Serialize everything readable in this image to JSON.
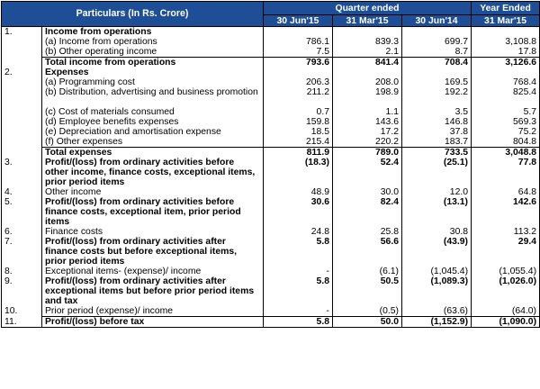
{
  "header": {
    "particulars": "Particulars (In Rs. Crore)",
    "quarter_ended": "Quarter ended",
    "year_ended": "Year Ended",
    "dates": [
      "30 Jun'15",
      "31 Mar'15",
      "30 Jun'14",
      "31 Mar'15"
    ]
  },
  "rows": [
    {
      "no": "1.",
      "label": "Income from operations",
      "section": true
    },
    {
      "label": "(a) Income from operations",
      "v": [
        "786.1",
        "839.3",
        "699.7",
        "3,108.8"
      ]
    },
    {
      "label": "(b) Other operating income",
      "v": [
        "7.5",
        "2.1",
        "8.7",
        "17.8"
      ]
    },
    {
      "label": "Total income from operations",
      "v": [
        "793.6",
        "841.4",
        "708.4",
        "3,126.6"
      ],
      "bold": true,
      "total": true
    },
    {
      "no": "2.",
      "label": "Expenses",
      "section": true
    },
    {
      "label": "(a) Programming cost",
      "v": [
        "206.3",
        "208.0",
        "169.5",
        "768.4"
      ]
    },
    {
      "label": "(b) Distribution, advertising and business promotion",
      "v": [
        "211.2",
        "198.9",
        "192.2",
        "825.4"
      ]
    },
    {
      "gap": true
    },
    {
      "label": "(c) Cost of materials consumed",
      "v": [
        "0.7",
        "1.1",
        "3.5",
        "5.7"
      ]
    },
    {
      "label": "(d) Employee benefits expenses",
      "v": [
        "159.8",
        "143.6",
        "146.8",
        "569.3"
      ]
    },
    {
      "label": "(e) Depreciation and amortisation expense",
      "v": [
        "18.5",
        "17.2",
        "37.8",
        "75.2"
      ]
    },
    {
      "label": "(f) Other expenses",
      "v": [
        "215.4",
        "220.2",
        "183.7",
        "804.8"
      ]
    },
    {
      "label": "Total expenses",
      "v": [
        "811.9",
        "789.0",
        "733.5",
        "3,048.8"
      ],
      "bold": true,
      "total": true
    },
    {
      "no": "3.",
      "label": "Profit/(loss) from ordinary activities before other income, finance costs, exceptional items, prior period items",
      "v": [
        "(18.3)",
        "52.4",
        "(25.1)",
        "77.8"
      ],
      "bold": true
    },
    {
      "no": "4.",
      "label": "Other income",
      "v": [
        "48.9",
        "30.0",
        "12.0",
        "64.8"
      ]
    },
    {
      "no": "5.",
      "label": "Profit/(loss) from ordinary activities before finance costs, exceptional item, prior period items",
      "v": [
        "30.6",
        "82.4",
        "(13.1)",
        "142.6"
      ],
      "bold": true
    },
    {
      "no": "6.",
      "label": "Finance costs",
      "v": [
        "24.8",
        "25.8",
        "30.8",
        "113.2"
      ]
    },
    {
      "no": "7.",
      "label": "Profit/(loss) from ordinary activities after finance costs but before exceptional items, prior period items",
      "v": [
        "5.8",
        "56.6",
        "(43.9)",
        "29.4"
      ],
      "bold": true
    },
    {
      "no": "8.",
      "label": "Exceptional items- (expense)/ income",
      "v": [
        "-",
        "(6.1)",
        "(1,045.4)",
        "(1,055.4)"
      ]
    },
    {
      "no": "9.",
      "label": "Profit/(loss) from ordinary activities after exceptional items but before prior period items and tax",
      "v": [
        "5.8",
        "50.5",
        "(1,089.3)",
        "(1,026.0)"
      ],
      "bold": true
    },
    {
      "no": "10.",
      "label": "Prior period (expense)/ income",
      "v": [
        "-",
        "(0.5)",
        "(63.6)",
        "(64.0)"
      ]
    },
    {
      "no": "11.",
      "label": "Profit/(loss) before tax",
      "v": [
        "5.8",
        "50.0",
        "(1,152.9)",
        "(1,090.0)"
      ],
      "bold": true,
      "total": true,
      "last": true
    }
  ]
}
